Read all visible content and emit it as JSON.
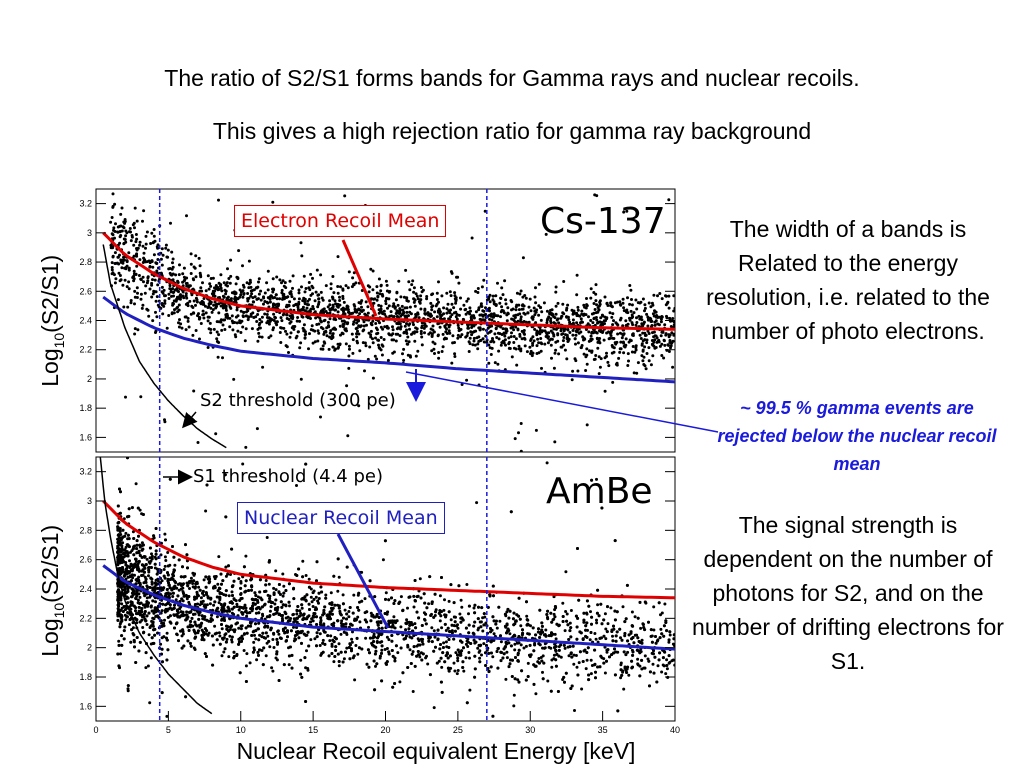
{
  "slide": {
    "title_line1": "The ratio of S2/S1 forms bands for Gamma rays and nuclear recoils.",
    "title_line2": "This gives a high rejection ratio for gamma ray background",
    "side_text_width": "The width of a bands is Related to the energy resolution, i.e. related to the number of photo electrons.",
    "side_note": "~ 99.5 % gamma events are rejected below the nuclear recoil mean",
    "side_text_signal": "The signal strength is dependent on the number of photons for S2, and on the number of drifting electrons for S1."
  },
  "colors": {
    "electron_recoil": "#e00000",
    "nuclear_recoil": "#2020c0",
    "threshold": "#1a1adc",
    "points": "#000000",
    "note_text": "#1a1adc"
  },
  "chart_data": [
    {
      "type": "scatter",
      "panel": "top",
      "title": "Cs-137",
      "xlabel": "",
      "ylabel_prefix": "Log",
      "ylabel_sub": "10",
      "ylabel_suffix": "(S2/S1)",
      "xlim": [
        0,
        40
      ],
      "ylim": [
        1.5,
        3.3
      ],
      "y_ticks": [
        1.6,
        1.8,
        2,
        2.2,
        2.4,
        2.6,
        2.8,
        3,
        3.2
      ],
      "y_tick_labels": [
        "1.6",
        "1.8",
        "2",
        "2.2",
        "2.4",
        "2.6",
        "2.8",
        "3",
        "3.2"
      ],
      "band": {
        "description": "dense scatter of gamma events",
        "x_range": [
          1,
          40
        ],
        "center": [
          [
            1,
            2.95
          ],
          [
            3,
            2.75
          ],
          [
            5,
            2.62
          ],
          [
            8,
            2.52
          ],
          [
            12,
            2.46
          ],
          [
            20,
            2.42
          ],
          [
            30,
            2.37
          ],
          [
            40,
            2.33
          ]
        ],
        "spread": 0.12
      },
      "curves": [
        {
          "name": "Electron Recoil Mean",
          "color": "#e00000",
          "points": [
            [
              0.5,
              3.0
            ],
            [
              2,
              2.85
            ],
            [
              4,
              2.72
            ],
            [
              6,
              2.62
            ],
            [
              8,
              2.55
            ],
            [
              10,
              2.5
            ],
            [
              15,
              2.44
            ],
            [
              20,
              2.41
            ],
            [
              25,
              2.39
            ],
            [
              30,
              2.37
            ],
            [
              35,
              2.35
            ],
            [
              40,
              2.34
            ]
          ]
        },
        {
          "name": "Nuclear Recoil Mean",
          "color": "#2020c0",
          "points": [
            [
              0.5,
              2.56
            ],
            [
              2,
              2.45
            ],
            [
              4,
              2.35
            ],
            [
              6,
              2.28
            ],
            [
              8,
              2.23
            ],
            [
              10,
              2.19
            ],
            [
              15,
              2.14
            ],
            [
              20,
              2.11
            ],
            [
              25,
              2.07
            ],
            [
              30,
              2.04
            ],
            [
              35,
              2.01
            ],
            [
              40,
              1.98
            ]
          ]
        },
        {
          "name": "S2 threshold (300 pe)",
          "color": "#000000",
          "points": [
            [
              0.5,
              2.92
            ],
            [
              1,
              2.65
            ],
            [
              2,
              2.35
            ],
            [
              3,
              2.12
            ],
            [
              4,
              1.97
            ],
            [
              5,
              1.85
            ],
            [
              6,
              1.75
            ],
            [
              7,
              1.66
            ],
            [
              8,
              1.59
            ],
            [
              9,
              1.53
            ]
          ]
        }
      ],
      "annotations": [
        "Electron Recoil Mean",
        "S2 threshold (300 pe)"
      ],
      "vlines": [
        4.4,
        27
      ]
    },
    {
      "type": "scatter",
      "panel": "bottom",
      "title": "AmBe",
      "xlabel": "Nuclear Recoil equivalent Energy [keV]",
      "ylabel_prefix": "Log",
      "ylabel_sub": "10",
      "ylabel_suffix": "(S2/S1)",
      "xlim": [
        0,
        40
      ],
      "ylim": [
        1.5,
        3.3
      ],
      "x_ticks": [
        0,
        5,
        10,
        15,
        20,
        25,
        30,
        35,
        40
      ],
      "x_tick_labels": [
        "0",
        "5",
        "10",
        "15",
        "20",
        "25",
        "30",
        "35",
        "40"
      ],
      "y_ticks": [
        1.6,
        1.8,
        2,
        2.2,
        2.4,
        2.6,
        2.8,
        3,
        3.2
      ],
      "y_tick_labels": [
        "1.6",
        "1.8",
        "2",
        "2.2",
        "2.4",
        "2.6",
        "2.8",
        "3",
        "3.2"
      ],
      "band": {
        "description": "dense scatter of nuclear recoil events, densest at low energy",
        "x_range": [
          1.5,
          40
        ],
        "center": [
          [
            2,
            2.5
          ],
          [
            4,
            2.38
          ],
          [
            6,
            2.3
          ],
          [
            8,
            2.25
          ],
          [
            12,
            2.2
          ],
          [
            20,
            2.12
          ],
          [
            30,
            2.05
          ],
          [
            40,
            2.0
          ]
        ],
        "spread": 0.15
      },
      "curves": [
        {
          "name": "Electron Recoil Mean",
          "color": "#e00000",
          "points": [
            [
              0.5,
              3.0
            ],
            [
              2,
              2.85
            ],
            [
              4,
              2.72
            ],
            [
              6,
              2.62
            ],
            [
              8,
              2.55
            ],
            [
              10,
              2.5
            ],
            [
              15,
              2.44
            ],
            [
              20,
              2.41
            ],
            [
              25,
              2.39
            ],
            [
              30,
              2.37
            ],
            [
              35,
              2.35
            ],
            [
              40,
              2.34
            ]
          ]
        },
        {
          "name": "Nuclear Recoil Mean",
          "color": "#2020c0",
          "points": [
            [
              0.5,
              2.56
            ],
            [
              2,
              2.45
            ],
            [
              4,
              2.36
            ],
            [
              6,
              2.29
            ],
            [
              8,
              2.24
            ],
            [
              10,
              2.2
            ],
            [
              15,
              2.14
            ],
            [
              20,
              2.11
            ],
            [
              25,
              2.08
            ],
            [
              30,
              2.05
            ],
            [
              35,
              2.02
            ],
            [
              40,
              1.99
            ]
          ]
        },
        {
          "name": "threshold",
          "color": "#000000",
          "points": [
            [
              0.3,
              3.3
            ],
            [
              0.6,
              3.0
            ],
            [
              1,
              2.75
            ],
            [
              1.5,
              2.5
            ],
            [
              2,
              2.32
            ],
            [
              3,
              2.1
            ],
            [
              4,
              1.95
            ],
            [
              5,
              1.82
            ],
            [
              6,
              1.72
            ],
            [
              7,
              1.62
            ],
            [
              8,
              1.55
            ]
          ]
        }
      ],
      "annotations": [
        "S1 threshold (4.4 pe)",
        "Nuclear Recoil Mean"
      ],
      "vlines": [
        4.4,
        27
      ]
    }
  ]
}
